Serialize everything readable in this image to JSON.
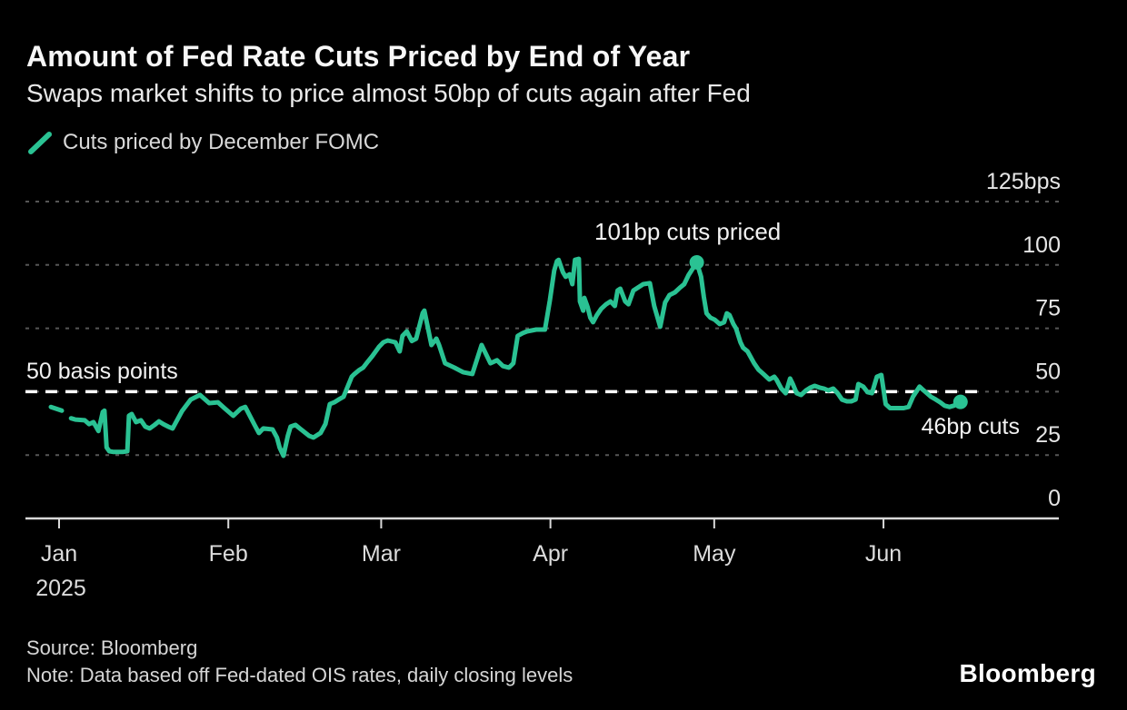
{
  "header": {
    "title": "Amount of Fed Rate Cuts Priced by End of Year",
    "subtitle": "Swaps market shifts to price almost 50bp of cuts again after Fed"
  },
  "legend": {
    "label": "Cuts priced by December FOMC"
  },
  "colors": {
    "background": "#000000",
    "accent_green": "#2ac293",
    "grid": "#565656",
    "axis": "#d9d9d9",
    "reference_white": "#ffffff"
  },
  "chart_data": {
    "type": "line",
    "title": "Amount of Fed Rate Cuts Priced by End of Year",
    "subtitle": "Swaps market shifts to price almost 50bp of cuts again after Fed",
    "xlabel": "",
    "ylabel": "bps",
    "ylim": [
      0,
      125
    ],
    "grid": "dotted horizontal",
    "legend_position": "top-left",
    "yticks": [
      {
        "value": 125,
        "label": "125bps"
      },
      {
        "value": 100,
        "label": "100"
      },
      {
        "value": 75,
        "label": "75"
      },
      {
        "value": 50,
        "label": "50"
      },
      {
        "value": 25,
        "label": "25"
      },
      {
        "value": 0,
        "label": "0"
      }
    ],
    "xticks": [
      {
        "label": "Jan",
        "sublabel": "2025",
        "day": 0
      },
      {
        "label": "Feb",
        "day": 31
      },
      {
        "label": "Mar",
        "day": 59
      },
      {
        "label": "Apr",
        "day": 90
      },
      {
        "label": "May",
        "day": 120
      },
      {
        "label": "Jun",
        "day": 151
      }
    ],
    "x_unit": "days since Jan 1 2025",
    "y_unit": "basis points of cuts priced",
    "reference_line": {
      "label": "50 basis points",
      "value": 50
    },
    "annotations": [
      {
        "text": "101bp cuts priced",
        "day": 116.8,
        "bp": 101
      },
      {
        "text": "46bp cuts",
        "day": 165.1,
        "bp": 46
      }
    ],
    "markers": [
      {
        "day": 116.8,
        "bp": 101
      },
      {
        "day": 165.1,
        "bp": 46
      }
    ],
    "series": [
      {
        "name": "Cuts priced by December FOMC",
        "color": "#2ac293",
        "segments": [
          [
            [
              -1.5,
              44
            ],
            [
              0.5,
              42.5
            ]
          ],
          [
            [
              2.2,
              39.5
            ],
            [
              3,
              39
            ],
            [
              4.7,
              38.7
            ],
            [
              5.5,
              37.2
            ],
            [
              6.3,
              38
            ],
            [
              7.2,
              34.5
            ],
            [
              8,
              42
            ],
            [
              8.3,
              42.5
            ],
            [
              8.7,
              28
            ],
            [
              9.2,
              26.5
            ],
            [
              10,
              26.2
            ],
            [
              11.6,
              26.2
            ],
            [
              12.5,
              26.5
            ],
            [
              12.8,
              40.5
            ],
            [
              13.3,
              41.2
            ],
            [
              14.1,
              38
            ],
            [
              15,
              38.7
            ],
            [
              15.8,
              36.2
            ],
            [
              16.6,
              35.5
            ],
            [
              17.5,
              36.9
            ],
            [
              18.3,
              38.3
            ],
            [
              19.1,
              37.2
            ],
            [
              20,
              36.2
            ],
            [
              20.8,
              35.5
            ],
            [
              22.5,
              42.3
            ],
            [
              24.1,
              46.9
            ],
            [
              25.8,
              48.7
            ],
            [
              27.5,
              45.5
            ],
            [
              29.1,
              45.8
            ],
            [
              30.4,
              43.3
            ],
            [
              31.9,
              40.5
            ],
            [
              33.3,
              43.3
            ],
            [
              34.1,
              44
            ],
            [
              35.8,
              36.9
            ],
            [
              36.6,
              33.7
            ],
            [
              37.4,
              35.5
            ],
            [
              39.1,
              35.1
            ],
            [
              39.9,
              31.9
            ],
            [
              40.4,
              27.9
            ],
            [
              41.1,
              24.7
            ],
            [
              41.9,
              32.6
            ],
            [
              42.4,
              36.2
            ],
            [
              43.3,
              36.9
            ],
            [
              44.1,
              35.5
            ],
            [
              45.8,
              32.6
            ],
            [
              46.6,
              31.9
            ],
            [
              47.9,
              33.7
            ],
            [
              48.8,
              37.3
            ],
            [
              49.6,
              45.1
            ],
            [
              50.4,
              45.8
            ],
            [
              51.2,
              46.9
            ],
            [
              52.1,
              48
            ],
            [
              53.6,
              55.9
            ],
            [
              54.1,
              57
            ],
            [
              54.9,
              58.4
            ],
            [
              55.7,
              59.5
            ],
            [
              56.6,
              62
            ],
            [
              57.4,
              64.1
            ],
            [
              58.6,
              67.7
            ],
            [
              59.4,
              69.5
            ],
            [
              60.2,
              70.2
            ],
            [
              61.6,
              69.5
            ],
            [
              62.4,
              65.9
            ],
            [
              62.9,
              72
            ],
            [
              63.7,
              73.8
            ],
            [
              64.6,
              70
            ],
            [
              65.4,
              70.9
            ],
            [
              66.6,
              81
            ],
            [
              66.9,
              82
            ],
            [
              68.2,
              68.4
            ],
            [
              69.1,
              70.9
            ],
            [
              69.6,
              68.4
            ],
            [
              70.7,
              61.2
            ],
            [
              72.4,
              59.5
            ],
            [
              74,
              57.7
            ],
            [
              75.7,
              57
            ],
            [
              77.4,
              68.4
            ],
            [
              79,
              61.2
            ],
            [
              80.2,
              62.4
            ],
            [
              81.3,
              60.1
            ],
            [
              82.4,
              59.5
            ],
            [
              83.2,
              61.2
            ],
            [
              84,
              72
            ],
            [
              84.9,
              73.1
            ],
            [
              85.7,
              73.8
            ],
            [
              87.4,
              74.5
            ],
            [
              89,
              74.5
            ],
            [
              89.9,
              86
            ],
            [
              90.7,
              97.8
            ],
            [
              91.2,
              101.5
            ],
            [
              91.5,
              102
            ],
            [
              92.3,
              97.1
            ],
            [
              92.8,
              95.3
            ],
            [
              93.5,
              96.3
            ],
            [
              94,
              92.4
            ],
            [
              94.5,
              102
            ],
            [
              95.2,
              102.4
            ],
            [
              95.4,
              85.6
            ],
            [
              96,
              82
            ],
            [
              96.2,
              87
            ],
            [
              96.8,
              83.4
            ],
            [
              97.3,
              79.2
            ],
            [
              97.8,
              77.4
            ],
            [
              98.5,
              80.2
            ],
            [
              99.3,
              82.7
            ],
            [
              100.2,
              84.5
            ],
            [
              101,
              85.6
            ],
            [
              101.8,
              83.8
            ],
            [
              102.3,
              89.9
            ],
            [
              102.8,
              90.6
            ],
            [
              103.7,
              85.6
            ],
            [
              104.3,
              84.5
            ],
            [
              105.2,
              89.9
            ],
            [
              106,
              91
            ],
            [
              107,
              92.4
            ],
            [
              108.2,
              92.8
            ],
            [
              109,
              83.8
            ],
            [
              110.1,
              75.6
            ],
            [
              111,
              85.2
            ],
            [
              111.8,
              88.1
            ],
            [
              112.8,
              89.2
            ],
            [
              113.7,
              91
            ],
            [
              114.5,
              92.4
            ],
            [
              115.3,
              96
            ],
            [
              116.8,
              101
            ],
            [
              117.6,
              95.3
            ],
            [
              118.1,
              87.4
            ],
            [
              118.6,
              80.9
            ],
            [
              119.3,
              79.2
            ],
            [
              120.1,
              78.4
            ],
            [
              121,
              76.7
            ],
            [
              121.8,
              77.4
            ],
            [
              122.3,
              80.9
            ],
            [
              122.8,
              80.2
            ],
            [
              123.5,
              76.7
            ],
            [
              124,
              74.9
            ],
            [
              124.8,
              69.5
            ],
            [
              125.3,
              67.3
            ],
            [
              126.1,
              65.9
            ],
            [
              127.3,
              61.2
            ],
            [
              128.1,
              58.7
            ],
            [
              129,
              57
            ],
            [
              130.1,
              54.8
            ],
            [
              131,
              55.9
            ],
            [
              131.4,
              54.8
            ],
            [
              132.3,
              51.2
            ],
            [
              133.1,
              49.4
            ],
            [
              133.9,
              55.2
            ],
            [
              134.4,
              53
            ],
            [
              135.1,
              49.4
            ],
            [
              135.9,
              48.7
            ],
            [
              136.8,
              50.5
            ],
            [
              137.6,
              51.6
            ],
            [
              138.4,
              52.3
            ],
            [
              139.3,
              51.6
            ],
            [
              140.1,
              51.2
            ],
            [
              140.9,
              50.5
            ],
            [
              141.8,
              51.2
            ],
            [
              142.6,
              49.4
            ],
            [
              143.4,
              46.9
            ],
            [
              144.3,
              46.2
            ],
            [
              145.1,
              46.2
            ],
            [
              145.9,
              46.9
            ],
            [
              146.4,
              53
            ],
            [
              147.3,
              52
            ],
            [
              148.1,
              49.8
            ],
            [
              148.9,
              49.4
            ],
            [
              149.8,
              55.9
            ],
            [
              150.6,
              56.6
            ],
            [
              151.4,
              45.1
            ],
            [
              152.2,
              43.5
            ],
            [
              153.1,
              43.5
            ],
            [
              153.9,
              43.5
            ],
            [
              154.7,
              43.5
            ],
            [
              155.6,
              44
            ],
            [
              156.4,
              48
            ],
            [
              157.6,
              52
            ],
            [
              158.1,
              51
            ],
            [
              158.9,
              49.5
            ],
            [
              159.7,
              48
            ],
            [
              160.6,
              46.9
            ],
            [
              161.4,
              45.8
            ],
            [
              162.2,
              44.5
            ],
            [
              163.1,
              44
            ],
            [
              163.9,
              44.5
            ],
            [
              165.1,
              46
            ]
          ]
        ]
      }
    ]
  },
  "footer": {
    "source": "Source: Bloomberg",
    "note": "Note: Data based off Fed-dated OIS rates, daily closing levels",
    "brand": "Bloomberg"
  }
}
